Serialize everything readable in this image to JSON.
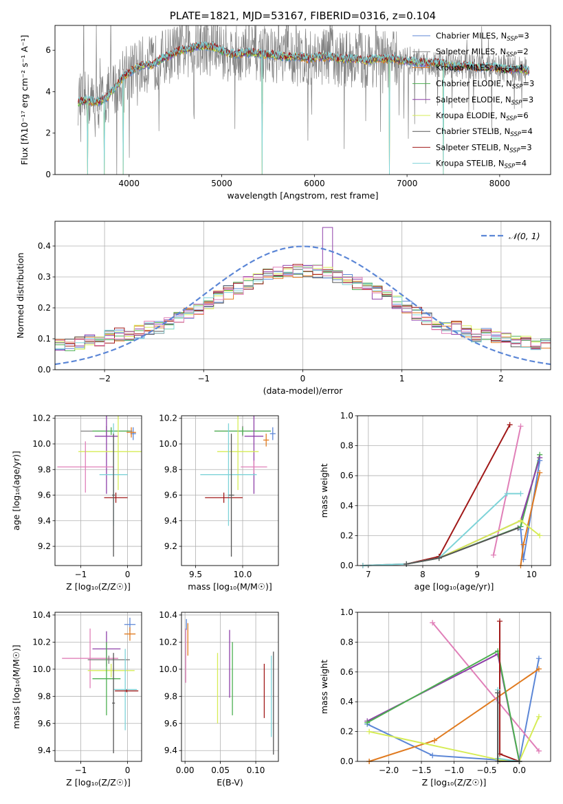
{
  "colors": {
    "blue": "#5b86d6",
    "orange": "#e07a1f",
    "gray": "#808080",
    "green": "#4caf50",
    "purple": "#8e3fa8",
    "yellow": "#d6ec55",
    "darkgray": "#555555",
    "red": "#a01818",
    "cyan": "#7dd3d8",
    "pink": "#e07fb8"
  },
  "chart_data": [
    {
      "type": "line",
      "title": "PLATE=1821, MJD=53167, FIBERID=0316, z=0.104",
      "xlabel": "wavelength [Angstrom, rest frame]",
      "ylabel": "Flux [fλ10⁻¹⁷ erg cm⁻² s⁻¹ A⁻¹]",
      "xlim": [
        3200,
        8550
      ],
      "ylim": [
        0,
        7.2
      ],
      "xticks": [
        "4000",
        "5000",
        "6000",
        "7000",
        "8000"
      ],
      "yticks": [
        "0",
        "2",
        "4",
        "6"
      ],
      "legend_position": "right",
      "legend": [
        {
          "base": "Chabrier MILES, N",
          "sub": "SSP",
          "tail": "=3",
          "color": "blue"
        },
        {
          "base": "Salpeter MILES, N",
          "sub": "SSP",
          "tail": "=2",
          "color": "gray"
        },
        {
          "base": "Kroupa MILES, N",
          "sub": "SSP",
          "tail": "=4",
          "color": "orange"
        },
        {
          "base": "Chabrier ELODIE, N",
          "sub": "SSP",
          "tail": "=3",
          "color": "green"
        },
        {
          "base": "Salpeter ELODIE, N",
          "sub": "SSP",
          "tail": "=3",
          "color": "purple"
        },
        {
          "base": "Kroupa ELODIE, N",
          "sub": "SSP",
          "tail": "=6",
          "color": "yellow"
        },
        {
          "base": "Chabrier STELIB, N",
          "sub": "SSP",
          "tail": "=4",
          "color": "darkgray"
        },
        {
          "base": "Salpeter STELIB, N",
          "sub": "SSP",
          "tail": "=3",
          "color": "red"
        },
        {
          "base": "Kroupa STELIB, N",
          "sub": "SSP",
          "tail": "=4",
          "color": "cyan"
        }
      ],
      "model_continuum": [
        [
          3450,
          3.5
        ],
        [
          3550,
          3.6
        ],
        [
          3650,
          3.5
        ],
        [
          3750,
          3.7
        ],
        [
          3850,
          4.2
        ],
        [
          3950,
          4.8
        ],
        [
          4050,
          5.1
        ],
        [
          4150,
          5.3
        ],
        [
          4250,
          5.3
        ],
        [
          4350,
          5.6
        ],
        [
          4450,
          5.8
        ],
        [
          4550,
          6.0
        ],
        [
          4650,
          6.1
        ],
        [
          4750,
          6.2
        ],
        [
          4850,
          6.2
        ],
        [
          4950,
          6.1
        ],
        [
          5050,
          5.9
        ],
        [
          5150,
          5.8
        ],
        [
          5250,
          5.9
        ],
        [
          5350,
          5.9
        ],
        [
          5450,
          5.8
        ],
        [
          5550,
          5.8
        ],
        [
          5650,
          5.7
        ],
        [
          5750,
          5.7
        ],
        [
          5850,
          5.7
        ],
        [
          5950,
          5.6
        ],
        [
          6050,
          5.7
        ],
        [
          6150,
          5.7
        ],
        [
          6250,
          5.6
        ],
        [
          6350,
          5.6
        ],
        [
          6450,
          5.6
        ],
        [
          6550,
          5.5
        ],
        [
          6650,
          5.6
        ],
        [
          6750,
          5.6
        ],
        [
          6850,
          5.6
        ],
        [
          6950,
          5.5
        ],
        [
          7050,
          5.5
        ],
        [
          7150,
          5.4
        ],
        [
          7250,
          5.4
        ],
        [
          7350,
          5.4
        ],
        [
          7450,
          5.3
        ],
        [
          7550,
          5.2
        ],
        [
          7650,
          5.3
        ],
        [
          7750,
          5.2
        ],
        [
          7850,
          5.2
        ],
        [
          7950,
          5.2
        ],
        [
          8050,
          5.1
        ],
        [
          8150,
          5.1
        ],
        [
          8250,
          5.1
        ],
        [
          8320,
          5.0
        ]
      ],
      "deep_drops_wavelength": [
        3550,
        3730,
        3935,
        5435,
        6810,
        7390
      ]
    },
    {
      "type": "bar",
      "xlabel": "(data-model)/error",
      "ylabel": "Normed distribution",
      "xlim": [
        -2.5,
        2.5
      ],
      "ylim": [
        0,
        0.48
      ],
      "xticks": [
        "−2",
        "−1",
        "0",
        "1",
        "2"
      ],
      "yticks": [
        "0.0",
        "0.1",
        "0.2",
        "0.3",
        "0.4"
      ],
      "legend_position": "top-right",
      "reference_label": "𝒩(0, 1)",
      "bin_width": 0.1
    },
    {
      "type": "scatter",
      "xlabel": "Z [log₁₀(Z/Z☉)]",
      "ylabel": "age [log₁₀(age/yr)]",
      "xlim": [
        -1.55,
        0.3
      ],
      "ylim": [
        9.05,
        10.22
      ],
      "xticks": [
        "−1",
        "0"
      ],
      "yticks": [
        "9.2",
        "9.4",
        "9.6",
        "9.8",
        "10.0",
        "10.2"
      ],
      "points": [
        {
          "color": "blue",
          "x": 0.12,
          "xerr": 0.06,
          "y": 10.08,
          "yerr": 0.05
        },
        {
          "color": "orange",
          "x": 0.08,
          "xerr": 0.1,
          "y": 10.09,
          "yerr": 0.04
        },
        {
          "color": "gray",
          "x": -0.45,
          "xerr": 0.55,
          "y": 10.1,
          "yerr": 0.04
        },
        {
          "color": "green",
          "x": -0.35,
          "xerr": 0.4,
          "y": 10.1,
          "yerr": 0.03
        },
        {
          "color": "purple",
          "x": -0.45,
          "xerr": 0.25,
          "y": 10.06,
          "yerr": 0.45
        },
        {
          "color": "yellow",
          "x": -0.2,
          "xerr": 0.85,
          "y": 9.94,
          "yerr": 0.3
        },
        {
          "color": "pink",
          "x": -0.9,
          "xerr": 0.6,
          "y": 9.82,
          "yerr": 0.2
        },
        {
          "color": "cyan",
          "x": -0.3,
          "xerr": 0.3,
          "y": 9.76,
          "yerr": 0.4
        },
        {
          "color": "red",
          "x": -0.25,
          "xerr": 0.25,
          "y": 9.58,
          "yerr": 0.04
        },
        {
          "color": "darkgray",
          "x": -0.3,
          "xerr": 0.03,
          "y": 9.6,
          "yerr": 0.48
        }
      ]
    },
    {
      "type": "scatter",
      "xlabel": "mass [log₁₀(M/M☉)]",
      "ylabel": "",
      "xlim": [
        9.35,
        10.38
      ],
      "ylim": [
        9.05,
        10.22
      ],
      "xticks": [
        "9.5",
        "10.0"
      ],
      "yticks": [
        "9.2",
        "9.4",
        "9.6",
        "9.8",
        "10.0",
        "10.2"
      ],
      "points": [
        {
          "color": "blue",
          "x": 10.32,
          "xerr": 0.03,
          "y": 10.08,
          "yerr": 0.05
        },
        {
          "color": "orange",
          "x": 10.25,
          "xerr": 0.03,
          "y": 10.03,
          "yerr": 0.05
        },
        {
          "color": "gray",
          "x": 10.0,
          "xerr": 0.3,
          "y": 10.1,
          "yerr": 0.04
        },
        {
          "color": "green",
          "x": 10.0,
          "xerr": 0.3,
          "y": 10.1,
          "yerr": 0.03
        },
        {
          "color": "purple",
          "x": 10.12,
          "xerr": 0.1,
          "y": 10.06,
          "yerr": 0.45
        },
        {
          "color": "yellow",
          "x": 9.95,
          "xerr": 0.22,
          "y": 9.94,
          "yerr": 0.3
        },
        {
          "color": "pink",
          "x": 10.12,
          "xerr": 0.14,
          "y": 9.82,
          "yerr": 0.05
        },
        {
          "color": "cyan",
          "x": 9.85,
          "xerr": 0.3,
          "y": 9.76,
          "yerr": 0.4
        },
        {
          "color": "red",
          "x": 9.8,
          "xerr": 0.2,
          "y": 9.58,
          "yerr": 0.04
        },
        {
          "color": "darkgray",
          "x": 9.88,
          "xerr": 0.03,
          "y": 9.6,
          "yerr": 0.48
        }
      ]
    },
    {
      "type": "line",
      "xlabel": "age [log₁₀(age/yr)]",
      "ylabel": "mass weight",
      "xlim": [
        6.8,
        10.35
      ],
      "ylim": [
        0,
        1.0
      ],
      "xticks": [
        "7",
        "8",
        "9",
        "10"
      ],
      "yticks": [
        "0.0",
        "0.2",
        "0.4",
        "0.6",
        "0.8",
        "1.0"
      ],
      "series": [
        {
          "color": "red",
          "points": [
            [
              6.9,
              0
            ],
            [
              7.7,
              0.01
            ],
            [
              8.3,
              0.06
            ],
            [
              9.6,
              0.94
            ]
          ]
        },
        {
          "color": "pink",
          "points": [
            [
              9.3,
              0.07
            ],
            [
              9.8,
              0.93
            ]
          ]
        },
        {
          "color": "green",
          "points": [
            [
              7.7,
              0.01
            ],
            [
              8.3,
              0.05
            ],
            [
              9.8,
              0.26
            ],
            [
              10.15,
              0.74
            ]
          ]
        },
        {
          "color": "purple",
          "points": [
            [
              7.7,
              0.01
            ],
            [
              8.3,
              0.05
            ],
            [
              9.8,
              0.3
            ],
            [
              10.15,
              0.72
            ]
          ]
        },
        {
          "color": "blue",
          "points": [
            [
              9.8,
              0.24
            ],
            [
              9.85,
              0.04
            ],
            [
              10.15,
              0.7
            ]
          ]
        },
        {
          "color": "orange",
          "points": [
            [
              9.8,
              0
            ],
            [
              9.85,
              0.14
            ],
            [
              10.15,
              0.62
            ]
          ]
        },
        {
          "color": "yellow",
          "points": [
            [
              7.7,
              0.01
            ],
            [
              8.3,
              0.05
            ],
            [
              9.8,
              0.3
            ],
            [
              10.15,
              0.2
            ]
          ]
        },
        {
          "color": "cyan",
          "points": [
            [
              6.9,
              0
            ],
            [
              7.7,
              0.01
            ],
            [
              8.3,
              0.05
            ],
            [
              9.55,
              0.48
            ],
            [
              9.8,
              0.48
            ]
          ]
        },
        {
          "color": "darkgray",
          "points": [
            [
              7.7,
              0.01
            ],
            [
              8.3,
              0.05
            ],
            [
              9.75,
              0.25
            ]
          ]
        }
      ]
    },
    {
      "type": "scatter",
      "xlabel": "Z [log₁₀(Z/Z☉)]",
      "ylabel": "mass [log₁₀(M/M☉)]",
      "xlim": [
        -1.55,
        0.3
      ],
      "ylim": [
        9.32,
        10.42
      ],
      "xticks": [
        "−1",
        "0"
      ],
      "yticks": [
        "9.4",
        "9.6",
        "9.8",
        "10.0",
        "10.2",
        "10.4"
      ],
      "points": [
        {
          "color": "blue",
          "x": 0.05,
          "xerr": 0.12,
          "y": 10.33,
          "yerr": 0.05
        },
        {
          "color": "orange",
          "x": 0.05,
          "xerr": 0.12,
          "y": 10.26,
          "yerr": 0.05
        },
        {
          "color": "purple",
          "x": -0.45,
          "xerr": 0.3,
          "y": 10.15,
          "yerr": 0.13
        },
        {
          "color": "pink",
          "x": -0.8,
          "xerr": 0.6,
          "y": 10.08,
          "yerr": 0.22
        },
        {
          "color": "gray",
          "x": -0.4,
          "xerr": 0.45,
          "y": 10.07,
          "yerr": 0.03
        },
        {
          "color": "yellow",
          "x": -0.35,
          "xerr": 0.5,
          "y": 9.99,
          "yerr": 0.05
        },
        {
          "color": "green",
          "x": -0.45,
          "xerr": 0.3,
          "y": 9.93,
          "yerr": 0.27
        },
        {
          "color": "cyan",
          "x": -0.05,
          "xerr": 0.25,
          "y": 9.85,
          "yerr": 0.3
        },
        {
          "color": "red",
          "x": -0.02,
          "xerr": 0.25,
          "y": 9.84,
          "yerr": 0.01
        },
        {
          "color": "darkgray",
          "x": -0.3,
          "xerr": 0.03,
          "y": 9.75,
          "yerr": 0.37
        }
      ]
    },
    {
      "type": "scatter",
      "xlabel": "E(B-V)",
      "ylabel": "",
      "xlim": [
        -0.005,
        0.132
      ],
      "ylim": [
        9.32,
        10.42
      ],
      "xticks": [
        "0.00",
        "0.05",
        "0.10"
      ],
      "yticks": [
        "9.4",
        "9.6",
        "9.8",
        "10.0",
        "10.2",
        "10.4"
      ],
      "points": [
        {
          "color": "blue",
          "x": 0.002,
          "y": 10.33,
          "yerr": 0.04
        },
        {
          "color": "orange",
          "x": 0.004,
          "y": 10.22,
          "yerr": 0.12
        },
        {
          "color": "pink",
          "x": 0.001,
          "y": 10.1,
          "yerr": 0.2
        },
        {
          "color": "yellow",
          "x": 0.046,
          "y": 9.86,
          "yerr": 0.26
        },
        {
          "color": "purple",
          "x": 0.063,
          "y": 10.04,
          "yerr": 0.25
        },
        {
          "color": "green",
          "x": 0.067,
          "y": 9.93,
          "yerr": 0.27
        },
        {
          "color": "red",
          "x": 0.112,
          "y": 9.84,
          "yerr": 0.2
        },
        {
          "color": "cyan",
          "x": 0.122,
          "y": 9.8,
          "yerr": 0.3
        },
        {
          "color": "darkgray",
          "x": 0.125,
          "y": 9.75,
          "yerr": 0.38
        }
      ]
    },
    {
      "type": "line",
      "xlabel": "Z [log₁₀(Z/Z☉)]",
      "ylabel": "mass weight",
      "xlim": [
        -2.48,
        0.48
      ],
      "ylim": [
        0,
        1.0
      ],
      "xticks": [
        "−2.0",
        "−1.5",
        "−1.0",
        "−0.5",
        "0.0"
      ],
      "yticks": [
        "0.0",
        "0.2",
        "0.4",
        "0.6",
        "0.8",
        "1.0"
      ],
      "series": [
        {
          "color": "blue",
          "points": [
            [
              -2.33,
              0.25
            ],
            [
              -1.33,
              0.04
            ],
            [
              0.0,
              0.0
            ],
            [
              0.3,
              0.69
            ]
          ]
        },
        {
          "color": "orange",
          "points": [
            [
              -2.3,
              0.0
            ],
            [
              -2.3,
              0.0
            ],
            [
              -1.3,
              0.14
            ],
            [
              0.3,
              0.62
            ]
          ]
        },
        {
          "color": "pink",
          "points": [
            [
              -1.33,
              0.93
            ],
            [
              0.3,
              0.07
            ]
          ]
        },
        {
          "color": "yellow",
          "points": [
            [
              -2.3,
              0.2
            ],
            [
              -0.3,
              0.01
            ],
            [
              0.0,
              0.0
            ],
            [
              0.3,
              0.3
            ]
          ]
        },
        {
          "color": "purple",
          "points": [
            [
              -2.33,
              0.27
            ],
            [
              -0.33,
              0.72
            ],
            [
              0.0,
              0.0
            ]
          ]
        },
        {
          "color": "green",
          "points": [
            [
              -2.33,
              0.26
            ],
            [
              -0.33,
              0.74
            ],
            [
              0.0,
              0.0
            ]
          ]
        },
        {
          "color": "red",
          "points": [
            [
              -0.3,
              0.94
            ],
            [
              -0.3,
              0.05
            ],
            [
              0.0,
              0.0
            ]
          ]
        },
        {
          "color": "cyan",
          "points": [
            [
              -0.33,
              0.48
            ],
            [
              -0.33,
              0.02
            ],
            [
              0.0,
              0.0
            ]
          ]
        },
        {
          "color": "darkgray",
          "points": [
            [
              -0.33,
              0.46
            ],
            [
              -0.33,
              0.0
            ],
            [
              0.0,
              0.0
            ]
          ]
        }
      ]
    }
  ]
}
